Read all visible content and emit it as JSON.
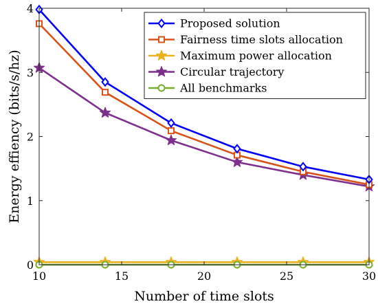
{
  "chart_data": {
    "type": "line",
    "xlabel": "Number of time slots",
    "ylabel": "Energy effiency (bits/s/hz)",
    "xlim": [
      10,
      30
    ],
    "ylim": [
      0,
      4
    ],
    "x_ticks": [
      10,
      15,
      20,
      25,
      30
    ],
    "y_ticks": [
      0,
      1,
      2,
      3,
      4
    ],
    "x_tick_labels": [
      "10",
      "15",
      "20",
      "25",
      "30"
    ],
    "y_tick_labels": [
      "0",
      "1",
      "2",
      "3",
      "4"
    ],
    "grid": false,
    "legend_position": "top-right",
    "x": [
      10,
      14,
      18,
      22,
      26,
      30
    ],
    "series": [
      {
        "name": "Proposed solution",
        "color": "#0000ff",
        "marker": "diamond",
        "values": [
          3.98,
          2.85,
          2.21,
          1.81,
          1.53,
          1.33
        ]
      },
      {
        "name": "Fairness time slots allocation",
        "color": "#d95319",
        "marker": "square",
        "values": [
          3.76,
          2.69,
          2.09,
          1.71,
          1.45,
          1.25
        ]
      },
      {
        "name": "Maximum power allocation",
        "color": "#edb120",
        "marker": "star",
        "values": [
          0.04,
          0.04,
          0.04,
          0.04,
          0.04,
          0.04
        ]
      },
      {
        "name": "Circular trajectory",
        "color": "#7e2f8e",
        "marker": "star",
        "values": [
          3.07,
          2.37,
          1.94,
          1.6,
          1.4,
          1.22
        ]
      },
      {
        "name": "All benchmarks",
        "color": "#77ac30",
        "marker": "circle",
        "values": [
          0.0,
          0.0,
          0.0,
          0.0,
          0.0,
          0.0
        ]
      }
    ]
  }
}
